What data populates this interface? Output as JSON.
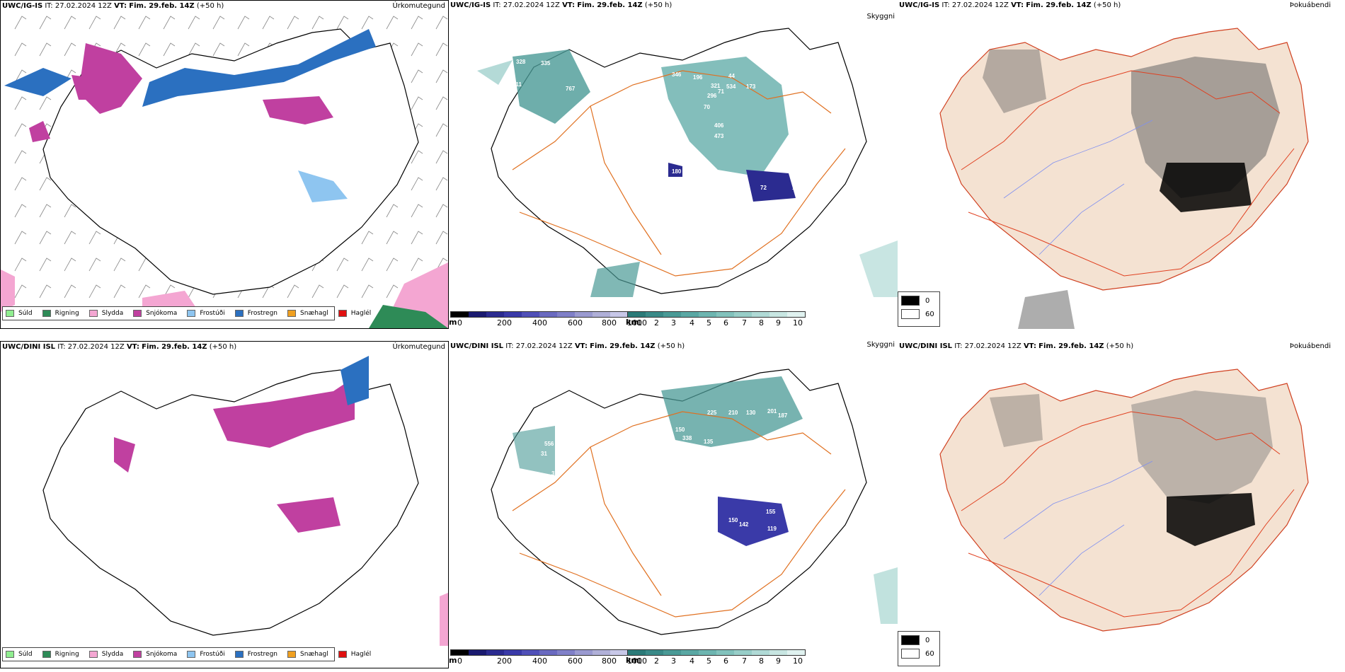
{
  "panels": [
    {
      "model": "UWC/IG-IS",
      "it_label": "IT:",
      "it_value": "27.02.2024 12Z",
      "vt_label": "VT:",
      "vt_value": "Fim. 29.feb. 14Z",
      "lead": "(+50 h)",
      "title": "Úrkomutegund"
    },
    {
      "model": "UWC/IG-IS",
      "it_label": "IT:",
      "it_value": "27.02.2024 12Z",
      "vt_label": "VT:",
      "vt_value": "Fim. 29.feb. 14Z",
      "lead": "(+50 h)",
      "title": "Skyggni"
    },
    {
      "model": "UWC/IG-IS",
      "it_label": "IT:",
      "it_value": "27.02.2024 12Z",
      "vt_label": "VT:",
      "vt_value": "Fim. 29.feb. 14Z",
      "lead": "(+50 h)",
      "title": "Þokuábendi"
    },
    {
      "model": "UWC/DINI ISL",
      "it_label": "IT:",
      "it_value": "27.02.2024 12Z",
      "vt_label": "VT:",
      "vt_value": "Fim. 29.feb. 14Z",
      "lead": "(+50 h)",
      "title": "Úrkomutegund"
    },
    {
      "model": "UWC/DINI ISL",
      "it_label": "IT:",
      "it_value": "27.02.2024 12Z",
      "vt_label": "VT:",
      "vt_value": "Fim. 29.feb. 14Z",
      "lead": "(+50 h)",
      "title": "Skyggni"
    },
    {
      "model": "UWC/DINI ISL",
      "it_label": "IT:",
      "it_value": "27.02.2024 12Z",
      "vt_label": "VT:",
      "vt_value": "Fim. 29.feb. 14Z",
      "lead": "(+50 h)",
      "title": "Þokuábendi"
    }
  ],
  "precip_legend": [
    {
      "label": "Súld",
      "color": "#90ee90"
    },
    {
      "label": "Rigning",
      "color": "#2e8b57"
    },
    {
      "label": "Slydda",
      "color": "#f4a6d2"
    },
    {
      "label": "Snjókoma",
      "color": "#c040a0"
    },
    {
      "label": "Frostúði",
      "color": "#8ec5f0"
    },
    {
      "label": "Frostregn",
      "color": "#2b70c0"
    },
    {
      "label": "Snæhagl",
      "color": "#f0a020"
    },
    {
      "label": "Haglél",
      "color": "#e01010"
    }
  ],
  "vis_scale_m": {
    "unit": "m",
    "ticks": [
      "0",
      "200",
      "400",
      "600",
      "800",
      "1000"
    ],
    "colors": [
      "#000000",
      "#1a1a70",
      "#2b2b90",
      "#3a3aa8",
      "#5050b8",
      "#6a6ac0",
      "#8080c8",
      "#9a9ad0",
      "#b0b0d8",
      "#c8c8e8"
    ]
  },
  "vis_scale_km": {
    "unit": "km",
    "ticks": [
      "1",
      "2",
      "3",
      "4",
      "5",
      "6",
      "7",
      "8",
      "9",
      "10"
    ],
    "colors": [
      "#2b7a78",
      "#3a8a88",
      "#4a9a96",
      "#5aa8a4",
      "#6db5b0",
      "#82c2bc",
      "#98cec8",
      "#b0dad6",
      "#c8e6e2",
      "#e0f2f0"
    ]
  },
  "fog_legend": [
    {
      "label": "0",
      "color": "#000000"
    },
    {
      "label": "60",
      "color": "#ffffff"
    }
  ],
  "top_vis_labels": [
    "328",
    "335",
    "767",
    "311",
    "346",
    "196",
    "44",
    "321",
    "534",
    "71",
    "296",
    "173",
    "70",
    "406",
    "473",
    "445",
    "22",
    "180",
    "72",
    "103"
  ],
  "bottom_vis_labels": [
    "225",
    "210",
    "130",
    "201",
    "187",
    "150",
    "338",
    "156",
    "135",
    "120",
    "556",
    "31",
    "37",
    "194",
    "182",
    "150",
    "142",
    "119",
    "155"
  ]
}
